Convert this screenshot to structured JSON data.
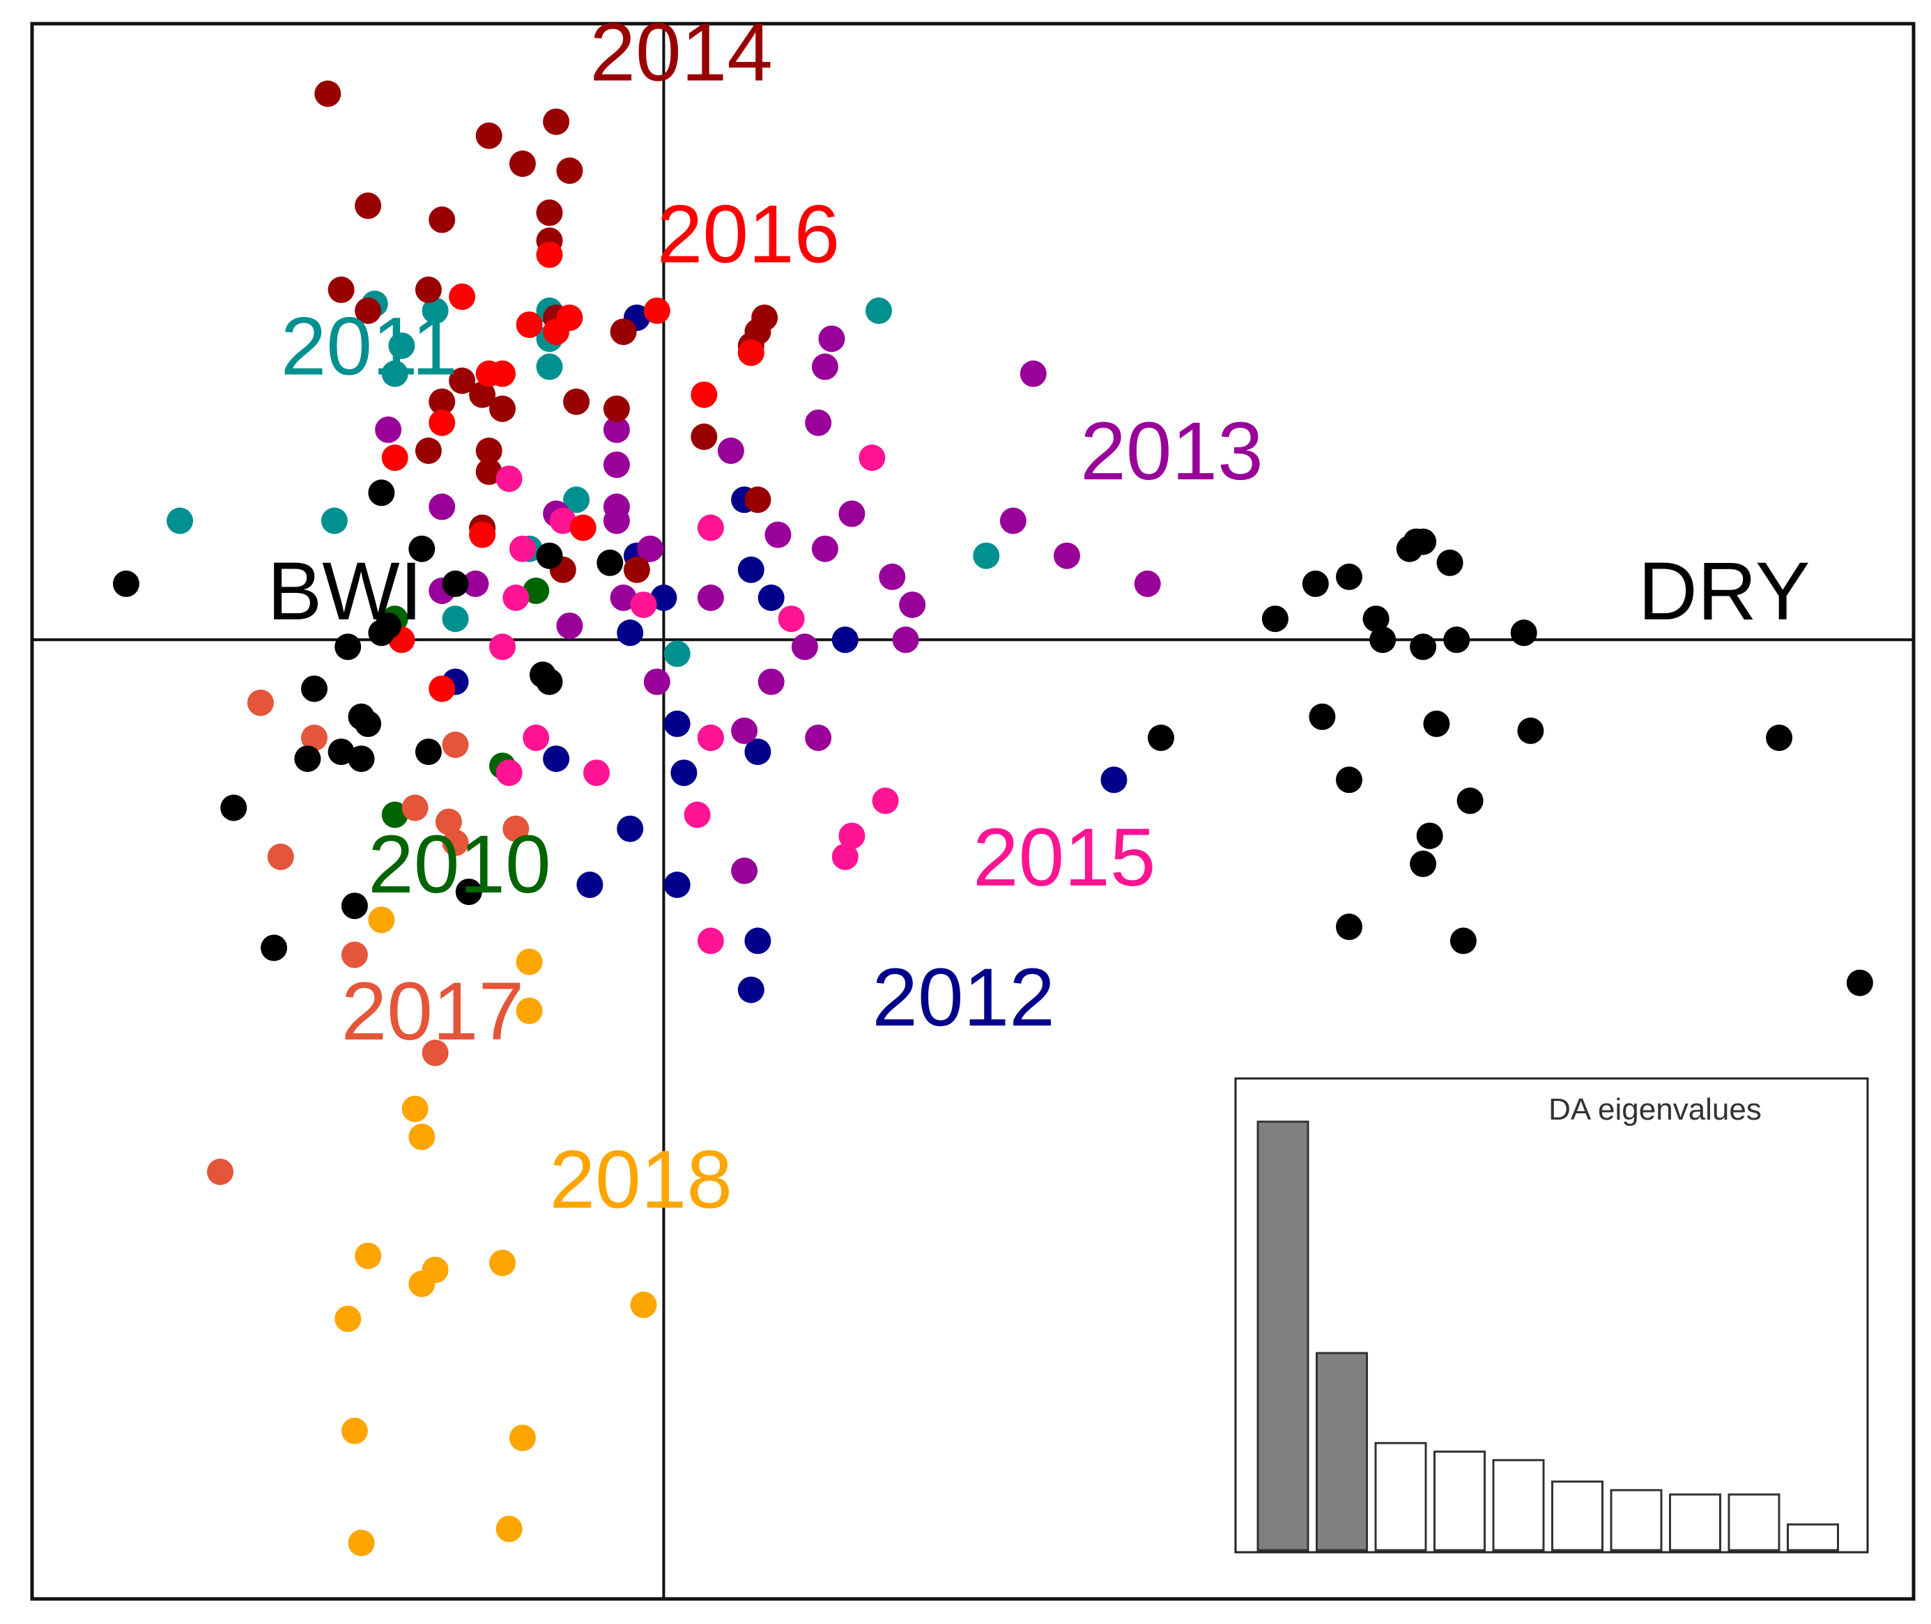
{
  "chart_data": {
    "type": "scatter",
    "title": "",
    "xlabel": "",
    "ylabel": "",
    "grid": false,
    "xlim": [
      -0.94,
      1.86
    ],
    "ylim": [
      -1.37,
      0.88
    ],
    "axes_origin": [
      0,
      0
    ],
    "colors": {
      "2010": "#006400",
      "2011": "#009090",
      "2012": "#00008B",
      "2013": "#990099",
      "2014": "#990000",
      "2015": "#FF1493",
      "2016": "#FF0000",
      "2017": "#E4553A",
      "2018": "#FFA500",
      "BWI": "#000000",
      "DRY": "#000000"
    },
    "group_labels": [
      {
        "name": "2010",
        "text": "2010",
        "x": -0.44,
        "y": -0.33
      },
      {
        "name": "2011",
        "text": "2011",
        "x": -0.57,
        "y": 0.41
      },
      {
        "name": "2012",
        "text": "2012",
        "x": 0.31,
        "y": -0.52
      },
      {
        "name": "2013",
        "text": "2013",
        "x": 0.62,
        "y": 0.26
      },
      {
        "name": "2014",
        "text": "2014",
        "x": -0.11,
        "y": 0.83
      },
      {
        "name": "2015",
        "text": "2015",
        "x": 0.46,
        "y": -0.32
      },
      {
        "name": "2016",
        "text": "2016",
        "x": -0.01,
        "y": 0.57
      },
      {
        "name": "2017",
        "text": "2017",
        "x": -0.48,
        "y": -0.54
      },
      {
        "name": "2018",
        "text": "2018",
        "x": -0.17,
        "y": -0.78
      },
      {
        "name": "BWI",
        "text": "BWI",
        "x": -0.59,
        "y": 0.06
      },
      {
        "name": "DRY",
        "text": "DRY",
        "x": 1.45,
        "y": 0.06
      }
    ],
    "series": [
      {
        "name": "2010",
        "points": [
          [
            -0.4,
            -0.25
          ],
          [
            -0.24,
            -0.18
          ],
          [
            -0.19,
            0.07
          ],
          [
            -0.4,
            0.03
          ]
        ]
      },
      {
        "name": "2011",
        "points": [
          [
            -0.72,
            0.17
          ],
          [
            -0.49,
            0.17
          ],
          [
            -0.43,
            0.48
          ],
          [
            -0.39,
            0.42
          ],
          [
            -0.4,
            0.38
          ],
          [
            -0.34,
            0.47
          ],
          [
            -0.17,
            0.47
          ],
          [
            -0.17,
            0.43
          ],
          [
            -0.17,
            0.39
          ],
          [
            -0.13,
            0.2
          ],
          [
            -0.2,
            0.13
          ],
          [
            -0.31,
            0.03
          ],
          [
            0.02,
            -0.02
          ],
          [
            0.32,
            0.47
          ],
          [
            0.48,
            0.12
          ]
        ]
      },
      {
        "name": "2012",
        "points": [
          [
            -0.04,
            0.46
          ],
          [
            -0.04,
            0.12
          ],
          [
            0.0,
            0.06
          ],
          [
            -0.05,
            0.01
          ],
          [
            0.02,
            -0.12
          ],
          [
            0.03,
            -0.19
          ],
          [
            0.12,
            0.2
          ],
          [
            0.13,
            0.1
          ],
          [
            0.16,
            0.06
          ],
          [
            0.27,
            0.0
          ],
          [
            0.14,
            -0.16
          ],
          [
            -0.31,
            -0.06
          ],
          [
            -0.16,
            -0.17
          ],
          [
            -0.05,
            -0.27
          ],
          [
            -0.11,
            -0.35
          ],
          [
            0.02,
            -0.35
          ],
          [
            0.14,
            -0.43
          ],
          [
            0.13,
            -0.5
          ],
          [
            0.67,
            -0.2
          ]
        ]
      },
      {
        "name": "2013",
        "points": [
          [
            -0.41,
            0.3
          ],
          [
            -0.33,
            0.19
          ],
          [
            -0.33,
            0.07
          ],
          [
            -0.28,
            0.08
          ],
          [
            -0.16,
            0.18
          ],
          [
            -0.14,
            0.02
          ],
          [
            -0.07,
            0.3
          ],
          [
            -0.07,
            0.25
          ],
          [
            -0.07,
            0.19
          ],
          [
            -0.07,
            0.17
          ],
          [
            -0.06,
            0.06
          ],
          [
            -0.02,
            0.13
          ],
          [
            0.07,
            0.06
          ],
          [
            0.1,
            0.27
          ],
          [
            0.17,
            0.15
          ],
          [
            0.25,
            0.43
          ],
          [
            0.24,
            0.39
          ],
          [
            0.23,
            0.31
          ],
          [
            0.24,
            0.13
          ],
          [
            0.21,
            -0.01
          ],
          [
            0.16,
            -0.06
          ],
          [
            0.07,
            -0.14
          ],
          [
            0.12,
            -0.13
          ],
          [
            0.23,
            -0.14
          ],
          [
            0.28,
            0.18
          ],
          [
            0.34,
            0.09
          ],
          [
            0.37,
            0.05
          ],
          [
            0.36,
            0.0
          ],
          [
            0.52,
            0.17
          ],
          [
            0.6,
            0.12
          ],
          [
            0.55,
            0.38
          ],
          [
            0.72,
            0.08
          ],
          [
            0.12,
            -0.33
          ],
          [
            -0.01,
            -0.06
          ]
        ]
      },
      {
        "name": "2014",
        "points": [
          [
            -0.5,
            0.78
          ],
          [
            -0.26,
            0.72
          ],
          [
            -0.16,
            0.74
          ],
          [
            -0.21,
            0.68
          ],
          [
            -0.14,
            0.67
          ],
          [
            -0.44,
            0.62
          ],
          [
            -0.33,
            0.6
          ],
          [
            -0.17,
            0.61
          ],
          [
            -0.17,
            0.57
          ],
          [
            -0.48,
            0.5
          ],
          [
            -0.44,
            0.47
          ],
          [
            -0.35,
            0.5
          ],
          [
            -0.16,
            0.46
          ],
          [
            -0.06,
            0.44
          ],
          [
            -0.27,
            0.35
          ],
          [
            -0.24,
            0.33
          ],
          [
            -0.33,
            0.34
          ],
          [
            -0.3,
            0.37
          ],
          [
            -0.13,
            0.34
          ],
          [
            -0.07,
            0.33
          ],
          [
            -0.26,
            0.27
          ],
          [
            -0.26,
            0.24
          ],
          [
            -0.35,
            0.27
          ],
          [
            -0.27,
            0.16
          ],
          [
            -0.15,
            0.1
          ],
          [
            -0.04,
            0.1
          ],
          [
            0.06,
            0.29
          ],
          [
            0.14,
            0.2
          ],
          [
            0.14,
            0.44
          ],
          [
            0.15,
            0.46
          ],
          [
            0.13,
            0.42
          ]
        ]
      },
      {
        "name": "2015",
        "points": [
          [
            -0.23,
            0.23
          ],
          [
            -0.15,
            0.17
          ],
          [
            -0.21,
            0.13
          ],
          [
            -0.22,
            0.06
          ],
          [
            -0.24,
            -0.01
          ],
          [
            -0.19,
            -0.14
          ],
          [
            -0.23,
            -0.19
          ],
          [
            -0.1,
            -0.19
          ],
          [
            -0.03,
            0.05
          ],
          [
            0.07,
            -0.14
          ],
          [
            0.05,
            -0.25
          ],
          [
            0.07,
            0.16
          ],
          [
            0.19,
            0.03
          ],
          [
            0.31,
            0.26
          ],
          [
            0.28,
            -0.28
          ],
          [
            0.27,
            -0.31
          ],
          [
            0.33,
            -0.23
          ],
          [
            0.07,
            -0.43
          ]
        ]
      },
      {
        "name": "2016",
        "points": [
          [
            -0.3,
            0.49
          ],
          [
            -0.2,
            0.45
          ],
          [
            -0.16,
            0.44
          ],
          [
            -0.14,
            0.46
          ],
          [
            -0.17,
            0.55
          ],
          [
            -0.01,
            0.47
          ],
          [
            -0.24,
            0.38
          ],
          [
            -0.33,
            0.31
          ],
          [
            -0.4,
            0.26
          ],
          [
            -0.26,
            0.38
          ],
          [
            0.06,
            0.35
          ],
          [
            0.13,
            0.41
          ],
          [
            -0.27,
            0.15
          ],
          [
            -0.39,
            0.0
          ],
          [
            -0.33,
            -0.07
          ],
          [
            -0.12,
            0.16
          ]
        ]
      },
      {
        "name": "2017",
        "points": [
          [
            -0.6,
            -0.09
          ],
          [
            -0.52,
            -0.14
          ],
          [
            -0.37,
            -0.24
          ],
          [
            -0.32,
            -0.26
          ],
          [
            -0.31,
            -0.29
          ],
          [
            -0.22,
            -0.27
          ],
          [
            -0.31,
            -0.15
          ],
          [
            -0.57,
            -0.31
          ],
          [
            -0.46,
            -0.45
          ],
          [
            -0.34,
            -0.59
          ],
          [
            -0.66,
            -0.76
          ]
        ]
      },
      {
        "name": "2018",
        "points": [
          [
            -0.42,
            -0.4
          ],
          [
            -0.2,
            -0.46
          ],
          [
            -0.2,
            -0.53
          ],
          [
            -0.37,
            -0.67
          ],
          [
            -0.36,
            -0.71
          ],
          [
            -0.44,
            -0.88
          ],
          [
            -0.36,
            -0.92
          ],
          [
            -0.34,
            -0.9
          ],
          [
            -0.24,
            -0.89
          ],
          [
            -0.03,
            -0.95
          ],
          [
            -0.47,
            -0.97
          ],
          [
            -0.46,
            -1.13
          ],
          [
            -0.21,
            -1.14
          ],
          [
            -0.45,
            -1.29
          ],
          [
            -0.23,
            -1.27
          ]
        ]
      },
      {
        "name": "BWI",
        "points": [
          [
            -0.8,
            0.08
          ],
          [
            -0.42,
            0.21
          ],
          [
            -0.36,
            0.13
          ],
          [
            -0.31,
            0.08
          ],
          [
            -0.17,
            0.12
          ],
          [
            -0.08,
            0.11
          ],
          [
            -0.41,
            0.02
          ],
          [
            -0.42,
            0.01
          ],
          [
            -0.47,
            -0.01
          ],
          [
            -0.52,
            -0.07
          ],
          [
            -0.45,
            -0.11
          ],
          [
            -0.44,
            -0.12
          ],
          [
            -0.53,
            -0.17
          ],
          [
            -0.48,
            -0.16
          ],
          [
            -0.45,
            -0.17
          ],
          [
            -0.35,
            -0.16
          ],
          [
            -0.18,
            -0.05
          ],
          [
            -0.17,
            -0.06
          ],
          [
            -0.64,
            -0.24
          ],
          [
            -0.46,
            -0.38
          ],
          [
            -0.29,
            -0.36
          ],
          [
            -0.58,
            -0.44
          ],
          [
            0.74,
            -0.14
          ],
          [
            0.91,
            0.03
          ],
          [
            0.97,
            0.08
          ],
          [
            1.02,
            0.09
          ],
          [
            1.06,
            0.03
          ],
          [
            1.07,
            0.0
          ],
          [
            1.11,
            0.13
          ],
          [
            1.12,
            0.14
          ],
          [
            1.13,
            0.14
          ],
          [
            1.17,
            0.11
          ],
          [
            1.13,
            -0.01
          ],
          [
            1.18,
            0.0
          ],
          [
            1.28,
            0.01
          ],
          [
            0.98,
            -0.11
          ],
          [
            1.15,
            -0.12
          ],
          [
            1.29,
            -0.13
          ],
          [
            1.02,
            -0.2
          ],
          [
            1.2,
            -0.23
          ],
          [
            1.14,
            -0.28
          ],
          [
            1.13,
            -0.32
          ],
          [
            1.66,
            -0.14
          ],
          [
            1.02,
            -0.41
          ],
          [
            1.19,
            -0.43
          ],
          [
            1.78,
            -0.49
          ]
        ]
      }
    ],
    "inset": {
      "title": "DA eigenvalues",
      "type": "bar",
      "values": [
        100,
        46,
        25,
        23,
        21,
        16,
        14,
        13,
        13,
        6
      ],
      "retained": 2
    }
  }
}
